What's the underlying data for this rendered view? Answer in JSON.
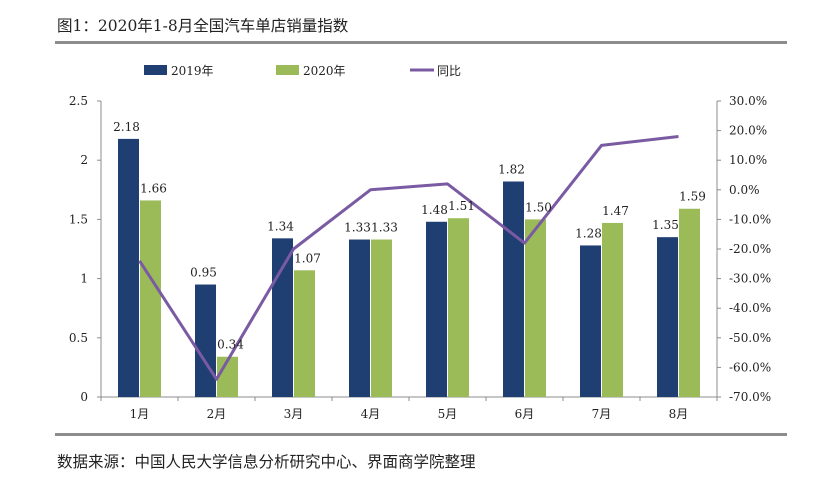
{
  "header": {
    "title": "图1：2020年1-8月全国汽车单店销量指数"
  },
  "footer": {
    "source": "数据来源：中国人民大学信息分析研究中心、界面商学院整理"
  },
  "colors": {
    "series_2019": "#1f3f73",
    "series_2020": "#9bbb59",
    "yoy_line": "#7a5ba3",
    "axis": "#8c8c8c"
  },
  "chart_data": {
    "type": "bar",
    "title": "2020年1-8月全国汽车单店销量指数",
    "categories": [
      "1月",
      "2月",
      "3月",
      "4月",
      "5月",
      "6月",
      "7月",
      "8月"
    ],
    "series": [
      {
        "name": "2019年",
        "type": "bar",
        "axis": "left",
        "values": [
          2.18,
          0.95,
          1.34,
          1.33,
          1.48,
          1.82,
          1.28,
          1.35
        ],
        "labels": [
          "2.18",
          "0.95",
          "1.34",
          "1.33",
          "1.48",
          "1.82",
          "1.28",
          "1.35"
        ]
      },
      {
        "name": "2020年",
        "type": "bar",
        "axis": "left",
        "values": [
          1.66,
          0.34,
          1.07,
          1.33,
          1.51,
          1.5,
          1.47,
          1.59
        ],
        "labels": [
          "1.66",
          "0.34",
          "1.07",
          "1.33",
          "1.51",
          "1.50",
          "1.47",
          "1.59"
        ]
      },
      {
        "name": "同比",
        "type": "line",
        "axis": "right",
        "values": [
          -24,
          -64,
          -20,
          0,
          2,
          -18,
          15,
          18
        ]
      }
    ],
    "y_left": {
      "min": 0,
      "max": 2.5,
      "ticks": [
        "0",
        "0.5",
        "1",
        "1.5",
        "2",
        "2.5"
      ]
    },
    "y_right": {
      "min": -70,
      "max": 30,
      "ticks": [
        "-70.0%",
        "-60.0%",
        "-50.0%",
        "-40.0%",
        "-30.0%",
        "-20.0%",
        "-10.0%",
        "0.0%",
        "10.0%",
        "20.0%",
        "30.0%"
      ]
    },
    "legend_position": "top"
  }
}
